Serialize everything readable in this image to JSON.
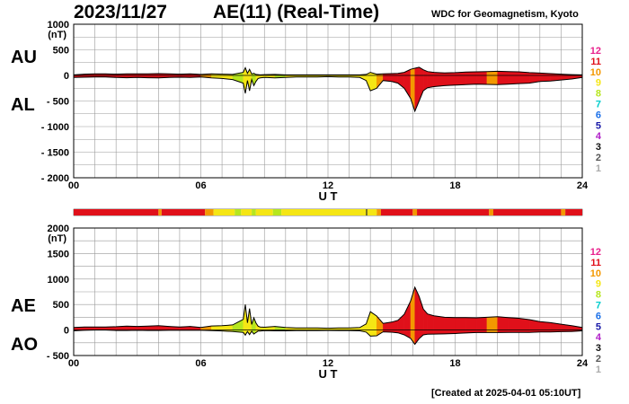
{
  "header": {
    "date": "2023/11/27",
    "title": "AE(11) (Real-Time)",
    "organization": "WDC for Geomagnetism, Kyoto"
  },
  "footer": {
    "created": "[Created at 2025-04-01 05:10UT]"
  },
  "colors": {
    "activity_scale": {
      "12": "#e8208c",
      "11": "#e0101a",
      "10": "#f39800",
      "9": "#f5e614",
      "8": "#b6e61e",
      "7": "#00cccc",
      "6": "#1a6fe8",
      "5": "#1a1aa8",
      "4": "#b01ec8",
      "3": "#111111",
      "2": "#555555",
      "1": "#aaaaaa"
    },
    "grid": "#999999"
  },
  "chart_data": [
    {
      "type": "area",
      "panel": "top",
      "series": [
        {
          "name": "AU",
          "x": [
            0,
            0.5,
            1,
            1.5,
            2,
            2.5,
            3,
            3.5,
            4,
            4.5,
            5,
            5.5,
            6,
            6.5,
            7,
            7.5,
            8,
            8.1,
            8.2,
            8.3,
            8.4,
            8.5,
            8.6,
            8.7,
            8.8,
            9,
            9.5,
            10,
            10.5,
            11,
            11.5,
            12,
            12.5,
            13,
            13.5,
            13.8,
            14,
            14.3,
            14.6,
            15,
            15.3,
            15.6,
            15.9,
            16.1,
            16.3,
            16.5,
            16.7,
            17,
            17.5,
            18,
            18.5,
            19,
            19.5,
            20,
            20.5,
            21,
            21.5,
            22,
            22.5,
            23,
            23.5,
            24
          ],
          "values": [
            10,
            25,
            30,
            30,
            25,
            30,
            30,
            30,
            35,
            30,
            25,
            30,
            20,
            30,
            25,
            20,
            60,
            150,
            40,
            120,
            30,
            40,
            20,
            15,
            10,
            15,
            20,
            10,
            10,
            10,
            10,
            10,
            10,
            10,
            10,
            20,
            60,
            25,
            30,
            35,
            40,
            60,
            120,
            140,
            160,
            110,
            75,
            60,
            50,
            55,
            65,
            70,
            75,
            80,
            75,
            70,
            55,
            45,
            35,
            25,
            15,
            10
          ]
        },
        {
          "name": "AL",
          "x": [
            0,
            0.5,
            1,
            1.5,
            2,
            2.5,
            3,
            3.5,
            4,
            4.5,
            5,
            5.5,
            6,
            6.5,
            7,
            7.5,
            8,
            8.1,
            8.2,
            8.3,
            8.4,
            8.5,
            8.6,
            8.7,
            8.8,
            9,
            9.5,
            10,
            10.5,
            11,
            11.5,
            12,
            12.5,
            13,
            13.5,
            13.8,
            14,
            14.3,
            14.6,
            15,
            15.3,
            15.6,
            15.9,
            16.1,
            16.3,
            16.5,
            16.7,
            17,
            17.5,
            18,
            18.5,
            19,
            19.5,
            20,
            20.5,
            21,
            21.5,
            22,
            22.5,
            23,
            23.5,
            24
          ],
          "values": [
            -40,
            -35,
            -30,
            -30,
            -40,
            -45,
            -40,
            -45,
            -50,
            -40,
            -35,
            -40,
            -30,
            -50,
            -60,
            -80,
            -150,
            -350,
            -100,
            -300,
            -80,
            -200,
            -120,
            -60,
            -50,
            -40,
            -50,
            -40,
            -30,
            -30,
            -30,
            -25,
            -30,
            -30,
            -40,
            -100,
            -300,
            -250,
            -100,
            -120,
            -150,
            -250,
            -450,
            -700,
            -500,
            -300,
            -240,
            -220,
            -200,
            -190,
            -180,
            -170,
            -175,
            -180,
            -170,
            -160,
            -150,
            -120,
            -110,
            -90,
            -70,
            -40
          ]
        }
      ],
      "ylabels": [
        "AU",
        "AL"
      ],
      "ylabel": "(nT)",
      "ylim": [
        -2000,
        1000
      ],
      "yticks": [
        1000,
        500,
        0,
        -500,
        -1000,
        -1500,
        -2000
      ],
      "xlim": [
        0,
        24
      ],
      "xticks": [
        "00",
        "06",
        "12",
        "18",
        "24"
      ],
      "xlabel": "U T",
      "grid": true
    },
    {
      "type": "area",
      "panel": "bottom",
      "series": [
        {
          "name": "AE",
          "x": [
            0,
            0.5,
            1,
            1.5,
            2,
            2.5,
            3,
            3.5,
            4,
            4.5,
            5,
            5.5,
            6,
            6.5,
            7,
            7.5,
            8,
            8.1,
            8.2,
            8.3,
            8.4,
            8.5,
            8.6,
            8.7,
            8.8,
            9,
            9.5,
            10,
            10.5,
            11,
            11.5,
            12,
            12.5,
            13,
            13.5,
            13.8,
            14,
            14.3,
            14.6,
            15,
            15.3,
            15.6,
            15.9,
            16.1,
            16.3,
            16.5,
            16.7,
            17,
            17.5,
            18,
            18.5,
            19,
            19.5,
            20,
            20.5,
            21,
            21.5,
            22,
            22.5,
            23,
            23.5,
            24
          ],
          "values": [
            50,
            60,
            60,
            60,
            65,
            75,
            70,
            75,
            85,
            70,
            60,
            70,
            50,
            80,
            85,
            100,
            210,
            500,
            140,
            420,
            110,
            240,
            140,
            75,
            60,
            55,
            70,
            50,
            40,
            40,
            40,
            35,
            40,
            40,
            50,
            120,
            360,
            275,
            130,
            155,
            190,
            310,
            570,
            840,
            660,
            410,
            315,
            280,
            250,
            245,
            245,
            240,
            250,
            260,
            245,
            230,
            205,
            165,
            145,
            115,
            85,
            50
          ]
        },
        {
          "name": "AO",
          "x": [
            0,
            0.5,
            1,
            1.5,
            2,
            2.5,
            3,
            3.5,
            4,
            4.5,
            5,
            5.5,
            6,
            6.5,
            7,
            7.5,
            8,
            8.1,
            8.2,
            8.3,
            8.4,
            8.5,
            8.6,
            8.7,
            8.8,
            9,
            9.5,
            10,
            10.5,
            11,
            11.5,
            12,
            12.5,
            13,
            13.5,
            13.8,
            14,
            14.3,
            14.6,
            15,
            15.3,
            15.6,
            15.9,
            16.1,
            16.3,
            16.5,
            16.7,
            17,
            17.5,
            18,
            18.5,
            19,
            19.5,
            20,
            20.5,
            21,
            21.5,
            22,
            22.5,
            23,
            23.5,
            24
          ],
          "values": [
            -15,
            -5,
            0,
            0,
            -8,
            -8,
            -5,
            -8,
            -8,
            -5,
            -5,
            -5,
            -5,
            -10,
            -18,
            -30,
            -45,
            -100,
            -30,
            -90,
            -25,
            -80,
            -50,
            -22,
            -20,
            -12,
            -15,
            -15,
            -10,
            -10,
            -10,
            -8,
            -10,
            -10,
            -15,
            -40,
            -120,
            -112,
            -35,
            -42,
            -55,
            -95,
            -165,
            -280,
            -170,
            -95,
            -82,
            -80,
            -75,
            -68,
            -58,
            -50,
            -50,
            -50,
            -48,
            -45,
            -48,
            -38,
            -38,
            -32,
            -28,
            -15
          ]
        }
      ],
      "ylabels": [
        "AE",
        "AO"
      ],
      "ylabel": "(nT)",
      "ylim": [
        -500,
        2000
      ],
      "yticks": [
        2000,
        1500,
        1000,
        500,
        0,
        -500
      ],
      "xlim": [
        0,
        24
      ],
      "xticks": [
        "00",
        "06",
        "12",
        "18",
        "24"
      ],
      "xlabel": "U T",
      "grid": true
    }
  ],
  "station_count_legend": [
    "12",
    "11",
    "10",
    "9",
    "8",
    "7",
    "6",
    "5",
    "4",
    "3",
    "2",
    "1"
  ],
  "station_count_timeline": {
    "segments": [
      [
        0,
        4,
        11
      ],
      [
        4,
        4.15,
        10
      ],
      [
        4.15,
        6.2,
        11
      ],
      [
        6.2,
        6.6,
        10
      ],
      [
        6.6,
        7.6,
        9
      ],
      [
        7.6,
        7.9,
        8
      ],
      [
        7.9,
        8.4,
        9
      ],
      [
        8.4,
        8.6,
        8
      ],
      [
        8.6,
        9.4,
        9
      ],
      [
        9.4,
        9.8,
        8
      ],
      [
        9.8,
        13.8,
        9
      ],
      [
        13.8,
        13.85,
        3
      ],
      [
        13.85,
        14.3,
        9
      ],
      [
        14.3,
        14.5,
        10
      ],
      [
        14.5,
        16.0,
        11
      ],
      [
        16.0,
        16.2,
        10
      ],
      [
        16.2,
        19.6,
        11
      ],
      [
        19.6,
        19.8,
        10
      ],
      [
        19.8,
        23.0,
        11
      ],
      [
        23.0,
        23.2,
        10
      ],
      [
        23.2,
        24,
        11
      ]
    ]
  }
}
